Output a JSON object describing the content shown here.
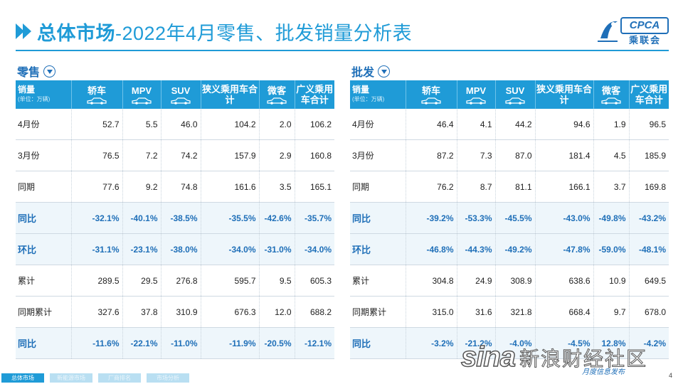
{
  "header": {
    "title_bold": "总体市场",
    "title_rest": "-2022年4月零售、批发销量分析表",
    "logo_text": "CPCA",
    "logo_cn": "乘联会"
  },
  "retail": {
    "label": "零售",
    "headers": [
      "销量",
      "轿车",
      "MPV",
      "SUV",
      "狭义乘用车合计",
      "微客",
      "广义乘用车合计"
    ],
    "unit": "(单位：万辆)",
    "rows": [
      {
        "label": "4月份",
        "cells": [
          "52.7",
          "5.5",
          "46.0",
          "104.2",
          "2.0",
          "106.2"
        ]
      },
      {
        "label": "3月份",
        "cells": [
          "76.5",
          "7.2",
          "74.2",
          "157.9",
          "2.9",
          "160.8"
        ]
      },
      {
        "label": "同期",
        "cells": [
          "77.6",
          "9.2",
          "74.8",
          "161.6",
          "3.5",
          "165.1"
        ]
      },
      {
        "label": "同比",
        "cells": [
          "-32.1%",
          "-40.1%",
          "-38.5%",
          "-35.5%",
          "-42.6%",
          "-35.7%"
        ]
      },
      {
        "label": "环比",
        "cells": [
          "-31.1%",
          "-23.1%",
          "-38.0%",
          "-34.0%",
          "-31.0%",
          "-34.0%"
        ]
      },
      {
        "label": "累计",
        "cells": [
          "289.5",
          "29.5",
          "276.8",
          "595.7",
          "9.5",
          "605.3"
        ]
      },
      {
        "label": "同期累计",
        "cells": [
          "327.6",
          "37.8",
          "310.9",
          "676.3",
          "12.0",
          "688.2"
        ]
      },
      {
        "label": "同比",
        "cells": [
          "-11.6%",
          "-22.1%",
          "-11.0%",
          "-11.9%",
          "-20.5%",
          "-12.1%"
        ]
      }
    ]
  },
  "wholesale": {
    "label": "批发",
    "headers": [
      "销量",
      "轿车",
      "MPV",
      "SUV",
      "狭义乘用车合计",
      "微客",
      "广义乘用车合计"
    ],
    "unit": "(单位：万辆)",
    "rows": [
      {
        "label": "4月份",
        "cells": [
          "46.4",
          "4.1",
          "44.2",
          "94.6",
          "1.9",
          "96.5"
        ]
      },
      {
        "label": "3月份",
        "cells": [
          "87.2",
          "7.3",
          "87.0",
          "181.4",
          "4.5",
          "185.9"
        ]
      },
      {
        "label": "同期",
        "cells": [
          "76.2",
          "8.7",
          "81.1",
          "166.1",
          "3.7",
          "169.8"
        ]
      },
      {
        "label": "同比",
        "cells": [
          "-39.2%",
          "-53.3%",
          "-45.5%",
          "-43.0%",
          "-49.8%",
          "-43.2%"
        ]
      },
      {
        "label": "环比",
        "cells": [
          "-46.8%",
          "-44.3%",
          "-49.2%",
          "-47.8%",
          "-59.0%",
          "-48.1%"
        ]
      },
      {
        "label": "累计",
        "cells": [
          "304.8",
          "24.9",
          "308.9",
          "638.6",
          "10.9",
          "649.5"
        ]
      },
      {
        "label": "同期累计",
        "cells": [
          "315.0",
          "31.6",
          "321.8",
          "668.4",
          "9.7",
          "678.0"
        ]
      },
      {
        "label": "同比",
        "cells": [
          "-3.2%",
          "-21.2%",
          "-4.0%",
          "-4.5%",
          "12.8%",
          "-4.2%"
        ]
      }
    ]
  },
  "footer": {
    "tabs": [
      "总体市场",
      "新能源市场",
      "厂商排名",
      "市场分析"
    ],
    "page_number": "4"
  },
  "watermark": {
    "brand": "sina",
    "cn": "新浪财经社区",
    "sub": "月度信息发布"
  },
  "colors": {
    "accent": "#1f9bd7",
    "dark_blue": "#1f6fb8",
    "pct_row_bg": "#eef6fb"
  }
}
